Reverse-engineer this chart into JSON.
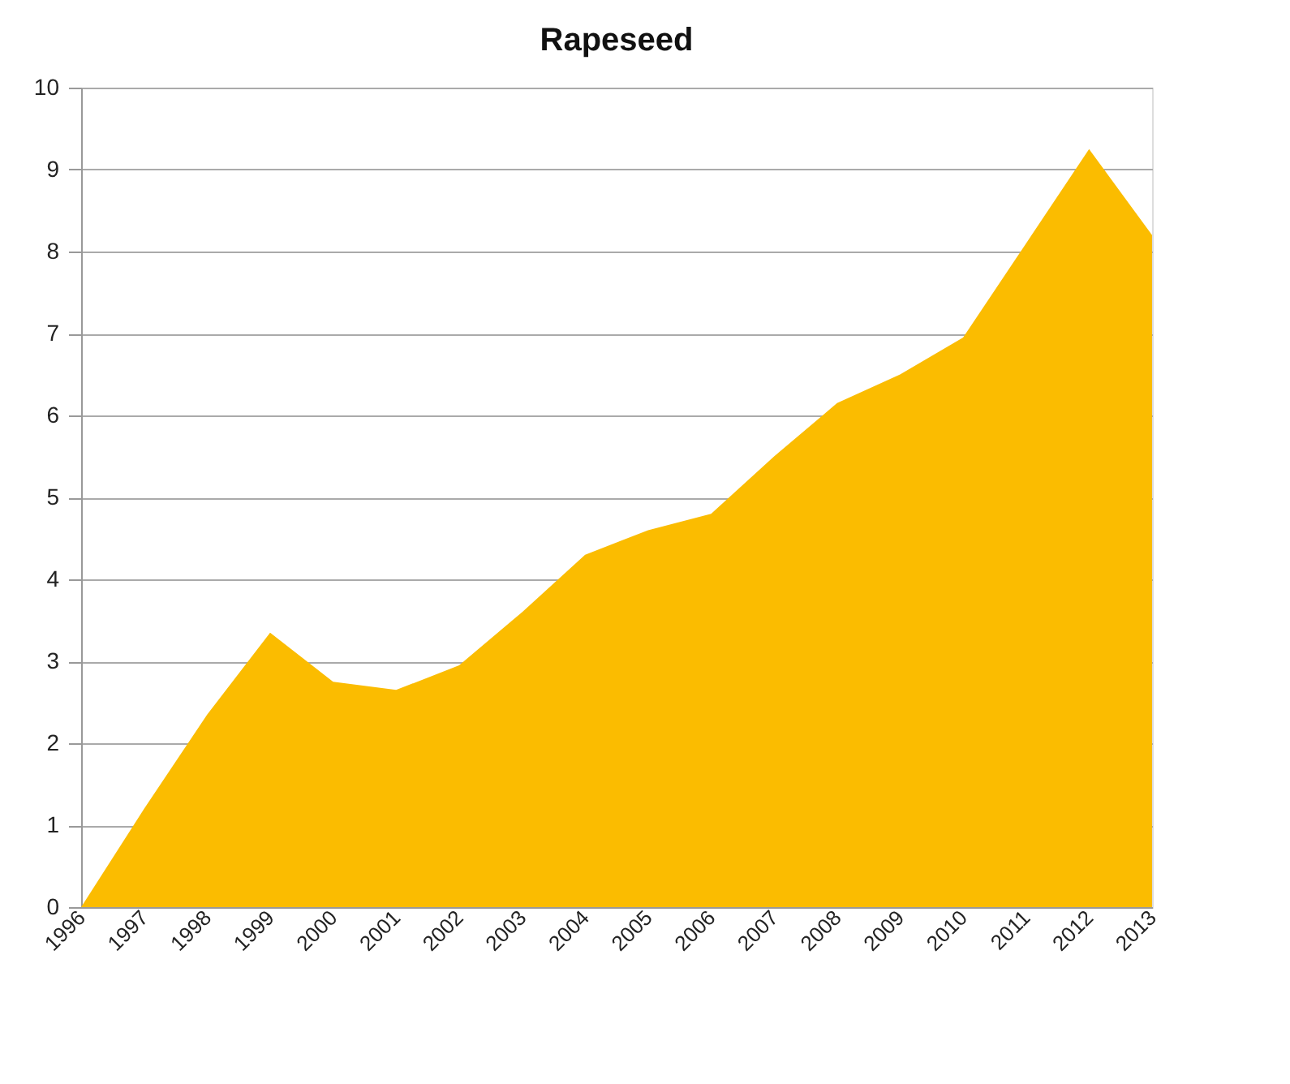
{
  "chart_data": {
    "type": "area",
    "title": "Rapeseed",
    "categories": [
      "1996",
      "1997",
      "1998",
      "1999",
      "2000",
      "2001",
      "2002",
      "2003",
      "2004",
      "2005",
      "2006",
      "2007",
      "2008",
      "2009",
      "2010",
      "2011",
      "2012",
      "2013"
    ],
    "values": [
      0,
      1.2,
      2.35,
      3.35,
      2.75,
      2.65,
      2.95,
      3.6,
      4.3,
      4.6,
      4.8,
      5.5,
      6.15,
      6.5,
      6.95,
      8.1,
      9.25,
      8.2
    ],
    "color": "#fbbc00",
    "ylim": [
      0,
      10
    ],
    "yticks": [
      0,
      1,
      2,
      3,
      4,
      5,
      6,
      7,
      8,
      9,
      10
    ],
    "grid": "y"
  }
}
